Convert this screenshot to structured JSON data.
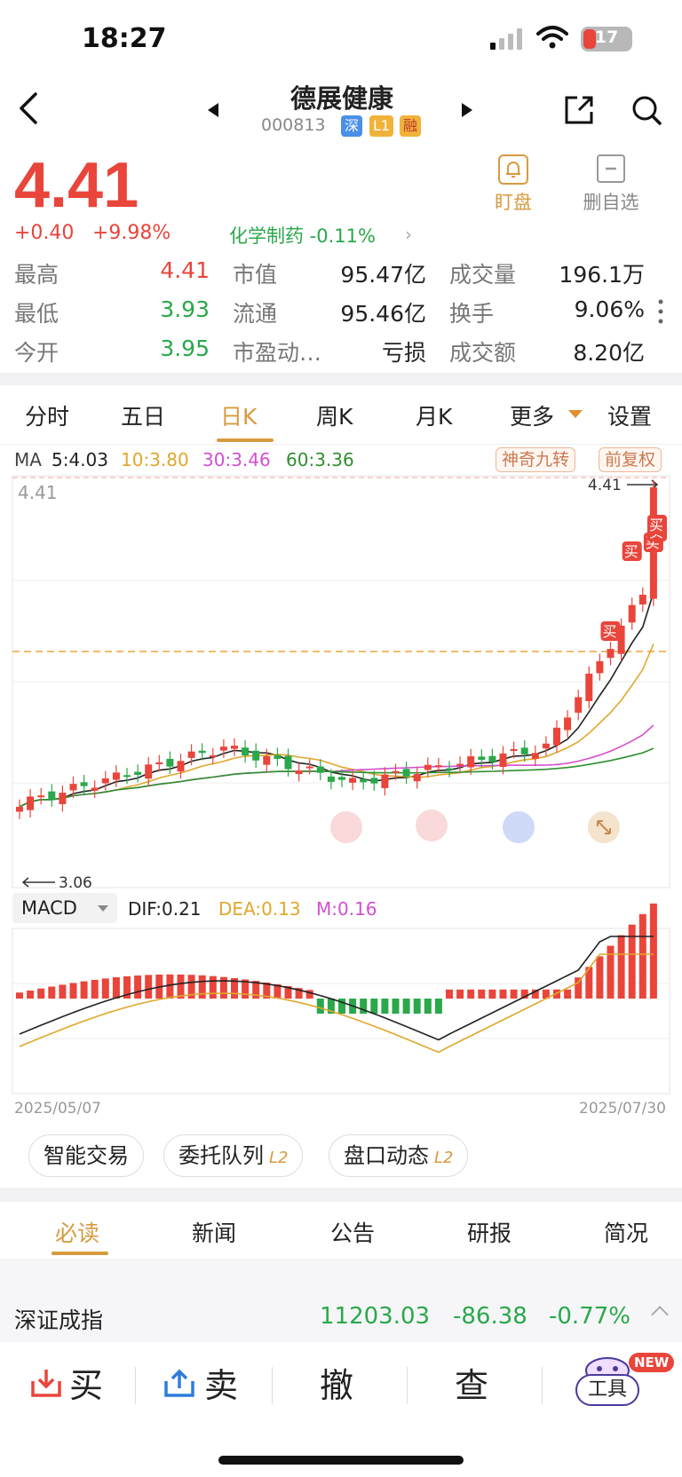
{
  "status": {
    "time": "18:27",
    "battery": "17"
  },
  "header": {
    "name": "德展健康",
    "code": "000813",
    "tags": [
      "深",
      "L1",
      "融"
    ]
  },
  "quote": {
    "price": "4.41",
    "change": "+0.40",
    "change_pct": "+9.98%",
    "sector": "化学制药 -0.11%",
    "watch_label": "盯盘",
    "remove_label": "删自选"
  },
  "stats": {
    "high_label": "最高",
    "high": "4.41",
    "low_label": "最低",
    "low": "3.93",
    "open_label": "今开",
    "open": "3.95",
    "mcap_label": "市值",
    "mcap": "95.47亿",
    "float_label": "流通",
    "float": "95.46亿",
    "pe_label": "市盈动…",
    "pe": "亏损",
    "vol_label": "成交量",
    "vol": "196.1万",
    "turnover_label": "换手",
    "turnover": "9.06%",
    "amount_label": "成交额",
    "amount": "8.20亿"
  },
  "period_tabs": [
    "分时",
    "五日",
    "日K",
    "周K",
    "月K",
    "更多",
    "设置"
  ],
  "ma": {
    "label": "MA",
    "ma5": "5:4.03",
    "ma10": "10:3.80",
    "ma30": "30:3.46",
    "ma60": "60:3.36"
  },
  "chips": {
    "nine": "神奇九转",
    "adjust": "前复权"
  },
  "kline": {
    "top_price": "4.41",
    "marker_high": "4.41",
    "marker_low": "3.06",
    "buy_mark": "买"
  },
  "macd": {
    "select": "MACD",
    "dif": "DIF:0.21",
    "dea": "DEA:0.13",
    "m": "M:0.16",
    "date_start": "2025/05/07",
    "date_end": "2025/07/30"
  },
  "tools": [
    {
      "label": "智能交易"
    },
    {
      "label": "委托队列",
      "badge": "L2"
    },
    {
      "label": "盘口动态",
      "badge": "L2"
    }
  ],
  "news_tabs": [
    "必读",
    "新闻",
    "公告",
    "研报",
    "简况"
  ],
  "index": {
    "name": "深证成指",
    "value": "11203.03",
    "change": "-86.38",
    "pct": "-0.77%"
  },
  "bottom": {
    "buy": "买",
    "sell": "卖",
    "cancel": "撤",
    "query": "查",
    "tool": "工具",
    "new": "NEW"
  },
  "colors": {
    "up": "#e9453b",
    "down": "#2aa84a",
    "accent": "#d89a3f",
    "ma5": "#222222",
    "ma10": "#e0a72c",
    "ma30": "#d24fd0",
    "ma60": "#2f8f2f"
  }
}
